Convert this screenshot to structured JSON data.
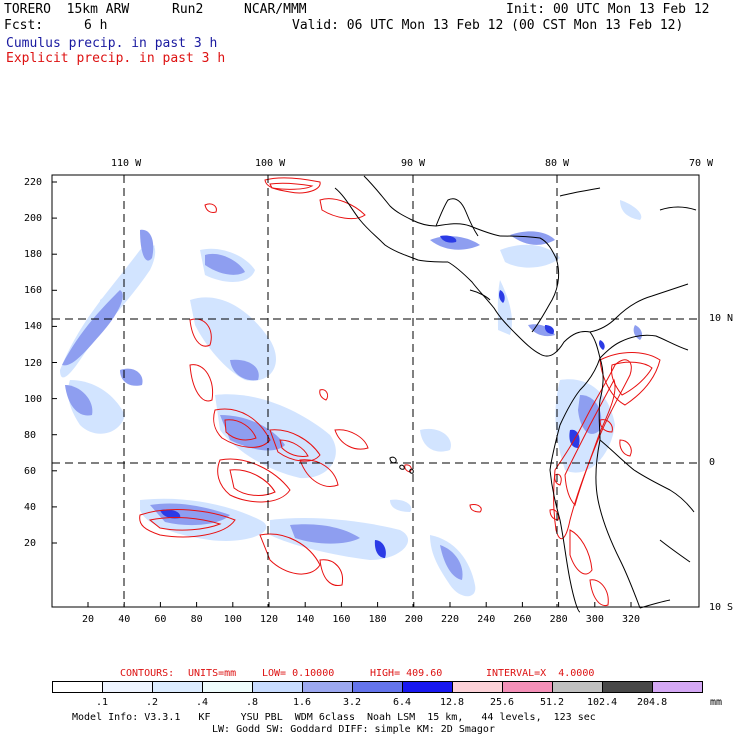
{
  "header": {
    "model": "TORERO  15km ARW",
    "run": "Run2",
    "center": "NCAR/MMM",
    "init": "Init: 00 UTC Mon 13 Feb 12",
    "fcst_label": "Fcst:",
    "fcst_value": "6 h",
    "valid": "Valid: 06 UTC Mon 13 Feb 12 (00 CST Mon 13 Feb 12)",
    "legend_cumulus": "Cumulus precip. in past 3 h",
    "legend_explicit": "Explicit precip. in past 3 h"
  },
  "map": {
    "lon_labels": [
      "110 W",
      "100 W",
      "90 W",
      "80 W",
      "70 W"
    ],
    "lat_labels": [
      "10 N",
      "0",
      "10 S"
    ],
    "y_ticks": [
      "220",
      "200",
      "180",
      "160",
      "140",
      "120",
      "100",
      "80",
      "60",
      "40",
      "20"
    ],
    "x_ticks": [
      "20",
      "40",
      "60",
      "80",
      "100",
      "120",
      "140",
      "160",
      "180",
      "200",
      "220",
      "240",
      "260",
      "280",
      "300",
      "320"
    ]
  },
  "contour_info": {
    "contours": "CONTOURS:",
    "units": "UNITS=mm",
    "low": "LOW= 0.10000",
    "high": "HIGH= 409.60",
    "interval": "INTERVAL=X  4.0000"
  },
  "colorbar": {
    "labels": [
      ".1",
      ".2",
      ".4",
      ".8",
      "1.6",
      "3.2",
      "6.4",
      "12.8",
      "25.6",
      "51.2",
      "102.4",
      "204.8"
    ],
    "unit": "mm",
    "colors": [
      "#ffffff",
      "#eef4ff",
      "#dcecff",
      "#eefcfc",
      "#c8dcff",
      "#9ca8f0",
      "#6474ec",
      "#1818f0",
      "#fcd2d8",
      "#f490b8",
      "#c0c0c0",
      "#484848",
      "#d4a8f4"
    ]
  },
  "footer": {
    "line1": "Model Info: V3.3.1   KF     YSU PBL  WDM 6class  Noah LSM  15 km,   44 levels,  123 sec",
    "line2": "LW: Godd SW: Goddard DIFF: simple KM: 2D Smagor"
  },
  "colors": {
    "cumulus_light": "#cfe2ff",
    "cumulus_mid": "#8c9cf0",
    "cumulus_dark": "#2a3ae8",
    "explicit_contour": "#e81010",
    "coastline": "#000000"
  }
}
